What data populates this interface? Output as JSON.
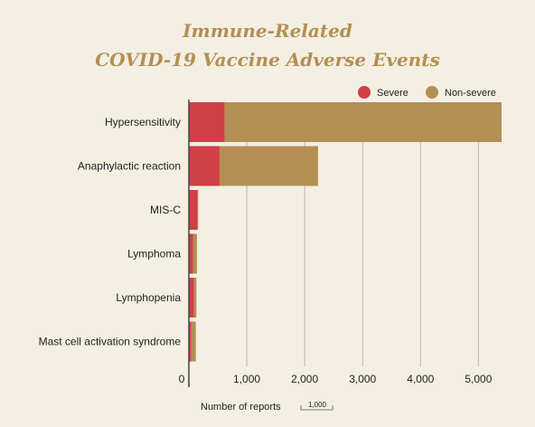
{
  "chart_data": {
    "type": "bar",
    "orientation": "horizontal",
    "stacked": true,
    "title": [
      "Immune-Related",
      "COVID-19 Vaccine Adverse Events"
    ],
    "categories": [
      "Hypersensitivity",
      "Anaphylactic reaction",
      "MIS-C",
      "Lymphoma",
      "Lymphopenia",
      "Mast cell activation syndrome"
    ],
    "series": [
      {
        "name": "Severe",
        "color": "#d13f47",
        "values": [
          620,
          530,
          150,
          70,
          90,
          40
        ]
      },
      {
        "name": "Non-severe",
        "color": "#b48f53",
        "values": [
          4780,
          1700,
          10,
          70,
          40,
          80
        ]
      }
    ],
    "xlabel": "Number of reports",
    "xlabel_badge": "1,000",
    "xlim": [
      0,
      5400
    ],
    "xticks": [
      0,
      1000,
      2000,
      3000,
      4000,
      5000
    ],
    "xtick_labels": [
      "0",
      "1,000",
      "2,000",
      "3,000",
      "4,000",
      "5,000"
    ],
    "grid": "vertical",
    "legend_position": "top-right"
  }
}
